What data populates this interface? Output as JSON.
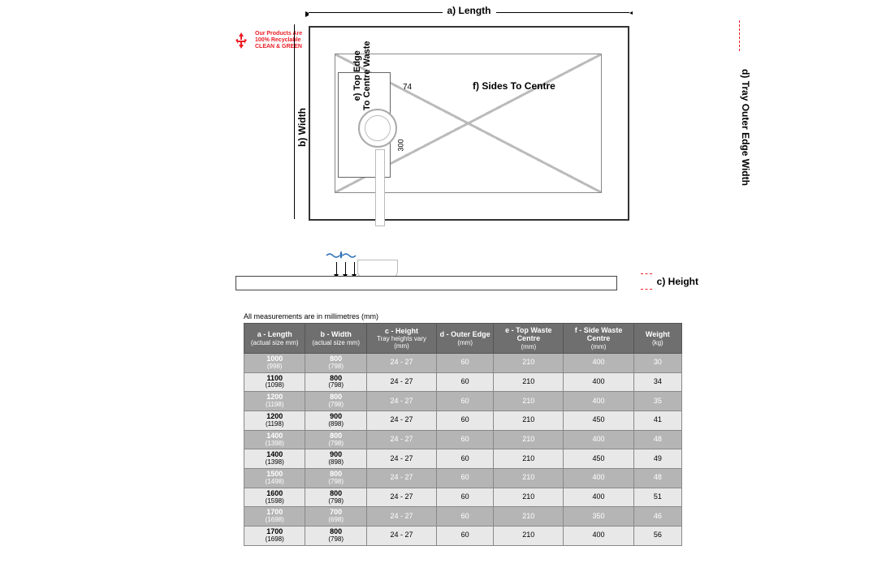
{
  "eco_badge": {
    "line1": "Our Products Are",
    "line2": "100% Recyclable",
    "line3": "CLEAN & GREEN",
    "color": "#eb1c24"
  },
  "diagram": {
    "label_a": "a) Length",
    "label_b": "b) Width",
    "label_c": "c) Height",
    "label_d": "d) Tray Outer Edge Width",
    "label_e": "e) Top Edge\nTo Centre Waste",
    "label_f": "f) Sides To Centre",
    "waste_w": "74",
    "waste_h": "300",
    "line_color": "#333333",
    "accent_color": "#eb1c24",
    "water_color": "#2a6fb5"
  },
  "table": {
    "note": "All measurements are in millimetres (mm)",
    "header_bg": "#6f6f6f",
    "header_fg": "#ffffff",
    "row_odd_bg": "#b5b5b5",
    "row_odd_fg": "#ffffff",
    "row_even_bg": "#e8e8e8",
    "row_even_fg": "#000000",
    "columns": [
      {
        "title": "a - Length",
        "sub": "(actual size mm)"
      },
      {
        "title": "b - Width",
        "sub": "(actual size mm)"
      },
      {
        "title": "c - Height",
        "sub": "Tray heights vary (mm)"
      },
      {
        "title": "d - Outer Edge",
        "sub": "(mm)"
      },
      {
        "title": "e - Top Waste Centre",
        "sub": "(mm)"
      },
      {
        "title": "f - Side Waste Centre",
        "sub": "(mm)"
      },
      {
        "title": "Weight",
        "sub": "(kg)"
      }
    ],
    "rows": [
      {
        "a": "1000",
        "as": "(998)",
        "b": "800",
        "bs": "(798)",
        "c": "24 - 27",
        "d": "60",
        "e": "210",
        "f": "400",
        "g": "30"
      },
      {
        "a": "1100",
        "as": "(1098)",
        "b": "800",
        "bs": "(798)",
        "c": "24 - 27",
        "d": "60",
        "e": "210",
        "f": "400",
        "g": "34"
      },
      {
        "a": "1200",
        "as": "(1198)",
        "b": "800",
        "bs": "(798)",
        "c": "24 - 27",
        "d": "60",
        "e": "210",
        "f": "400",
        "g": "35"
      },
      {
        "a": "1200",
        "as": "(1198)",
        "b": "900",
        "bs": "(898)",
        "c": "24 - 27",
        "d": "60",
        "e": "210",
        "f": "450",
        "g": "41"
      },
      {
        "a": "1400",
        "as": "(1398)",
        "b": "800",
        "bs": "(798)",
        "c": "24 - 27",
        "d": "60",
        "e": "210",
        "f": "400",
        "g": "48"
      },
      {
        "a": "1400",
        "as": "(1398)",
        "b": "900",
        "bs": "(898)",
        "c": "24 - 27",
        "d": "60",
        "e": "210",
        "f": "450",
        "g": "49"
      },
      {
        "a": "1500",
        "as": "(1498)",
        "b": "800",
        "bs": "(798)",
        "c": "24 - 27",
        "d": "60",
        "e": "210",
        "f": "400",
        "g": "48"
      },
      {
        "a": "1600",
        "as": "(1598)",
        "b": "800",
        "bs": "(798)",
        "c": "24 - 27",
        "d": "60",
        "e": "210",
        "f": "400",
        "g": "51"
      },
      {
        "a": "1700",
        "as": "(1698)",
        "b": "700",
        "bs": "(698)",
        "c": "24 - 27",
        "d": "60",
        "e": "210",
        "f": "350",
        "g": "46"
      },
      {
        "a": "1700",
        "as": "(1698)",
        "b": "800",
        "bs": "(798)",
        "c": "24 - 27",
        "d": "60",
        "e": "210",
        "f": "400",
        "g": "56"
      }
    ]
  }
}
